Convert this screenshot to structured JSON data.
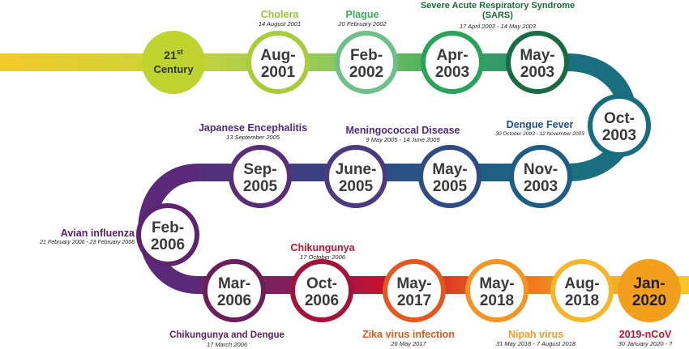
{
  "nodes": [
    {
      "id": "c21",
      "month": "21",
      "month_sup": "st",
      "year": "Century",
      "style": "start",
      "fill": "#bed230",
      "ring": "#bed230",
      "text": "#2b3a12"
    },
    {
      "id": "aug2001",
      "month": "Aug-",
      "year": "2001",
      "ring": "#a9cc3a"
    },
    {
      "id": "feb2002",
      "month": "Feb-",
      "year": "2002",
      "ring": "#6dc089"
    },
    {
      "id": "apr2003",
      "month": "Apr-",
      "year": "2003",
      "ring": "#2aa25a"
    },
    {
      "id": "may2003",
      "month": "May-",
      "year": "2003",
      "ring": "#1a6a44"
    },
    {
      "id": "oct2003",
      "month": "Oct-",
      "year": "2003",
      "ring": "#156d7d"
    },
    {
      "id": "nov2003",
      "month": "Nov-",
      "year": "2003",
      "ring": "#1e5d84"
    },
    {
      "id": "may2005",
      "month": "May-",
      "year": "2005",
      "ring": "#2d4d84"
    },
    {
      "id": "jun2005",
      "month": "June-",
      "year": "2005",
      "ring": "#4b3a7e"
    },
    {
      "id": "sep2005",
      "month": "Sep-",
      "year": "2005",
      "ring": "#5a2d78"
    },
    {
      "id": "feb2006",
      "month": "Feb-",
      "year": "2006",
      "ring": "#5e2470"
    },
    {
      "id": "mar2006",
      "month": "Mar-",
      "year": "2006",
      "ring": "#6a1e5a"
    },
    {
      "id": "oct2006",
      "month": "Oct-",
      "year": "2006",
      "ring": "#a4123a"
    },
    {
      "id": "may2017",
      "month": "May-",
      "year": "2017",
      "ring": "#e4581f"
    },
    {
      "id": "may2018",
      "month": "May-",
      "year": "2018",
      "ring": "#f29524"
    },
    {
      "id": "aug2018",
      "month": "Aug-",
      "year": "2018",
      "ring": "#f6b62a"
    },
    {
      "id": "jan2020",
      "month": "Jan-",
      "year": "2020",
      "style": "end",
      "fill": "#f29f1e",
      "ring": "#f29f1e",
      "text": "#1e1e1e"
    }
  ],
  "events": [
    {
      "id": "cholera",
      "title": "Cholera",
      "date": "14 August 2001",
      "color": "#9bc43b"
    },
    {
      "id": "plague",
      "title": "Plague",
      "date": "20 February 2002",
      "color": "#3eab5c"
    },
    {
      "id": "sars",
      "title": "Severe Acute Respiratory Syndrome",
      "title2": "(SARS)",
      "date": "17 April 2003 - 14 May 2003",
      "color": "#1d6b3d"
    },
    {
      "id": "dengue",
      "title": "Dengue Fever",
      "date": "30 October 2003 - 12 November 2003",
      "color": "#1f4f86"
    },
    {
      "id": "meningo",
      "title": "Meningococcal Disease",
      "date": "9 May 2005 - 14 June 2005",
      "color": "#4c2a7e"
    },
    {
      "id": "japenc",
      "title": "Japanese Encephalitis",
      "date": "13 September 2005",
      "color": "#4e2a78"
    },
    {
      "id": "avian",
      "title": "Avian influenza",
      "date": "21 February 2006 - 23 February 2006",
      "color": "#5e1e5e"
    },
    {
      "id": "chik",
      "title": "Chikungunya",
      "date": "17 October 2006",
      "color": "#c8102e"
    },
    {
      "id": "chikden",
      "title": "Chikungunya and Dengue",
      "date": "17 March 2006",
      "color": "#5e1e5e"
    },
    {
      "id": "zika",
      "title": "Zika virus infection",
      "date": "26 May 2017",
      "color": "#e0591f"
    },
    {
      "id": "nipah",
      "title": "Nipah virus",
      "date": "31 May 2018 - 7 August 2018",
      "color": "#f09a2a"
    },
    {
      "id": "ncov",
      "title": "2019-nCoV",
      "date": "30 January 2020 - ?",
      "color": "#c8102e"
    }
  ],
  "colors": {
    "track_start": "#f2c928",
    "track_mid": "#b6d23b",
    "track_teal": "#1a6f7e",
    "track_purple": "#5a2a78",
    "track_red": "#c8102e",
    "track_end": "#f7c52a",
    "node_text": "#3a3a3a"
  }
}
